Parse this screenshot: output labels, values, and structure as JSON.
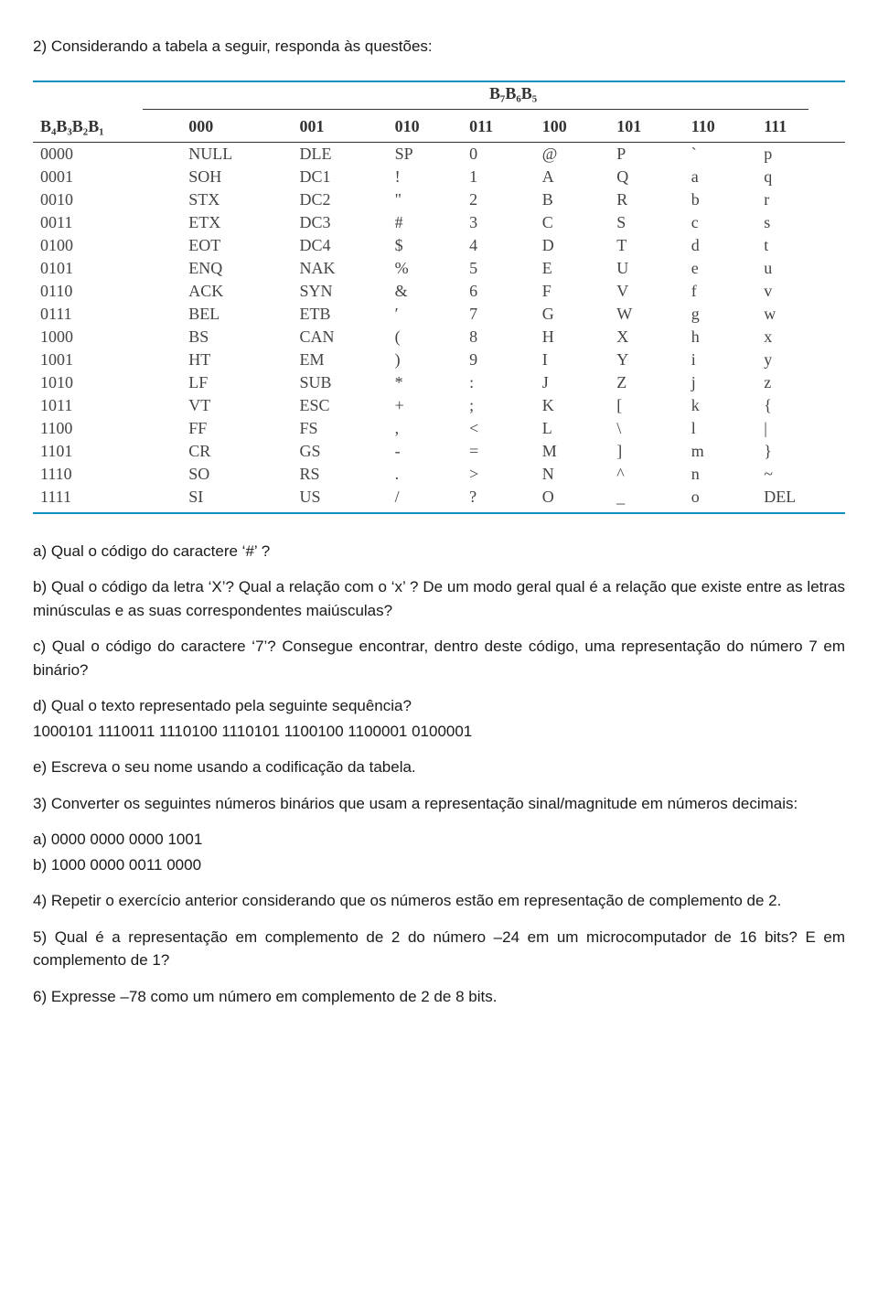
{
  "intro": "2) Considerando a tabela a seguir, responda às questões:",
  "table": {
    "super_header": "B₇B₆B₅",
    "row_header_label": "B₄B₃B₂B₁",
    "col_headers": [
      "000",
      "001",
      "010",
      "011",
      "100",
      "101",
      "110",
      "111"
    ],
    "rows": [
      {
        "b": "0000",
        "c": [
          "NULL",
          "DLE",
          "SP",
          "0",
          "@",
          "P",
          "`",
          "p"
        ]
      },
      {
        "b": "0001",
        "c": [
          "SOH",
          "DC1",
          "!",
          "1",
          "A",
          "Q",
          "a",
          "q"
        ]
      },
      {
        "b": "0010",
        "c": [
          "STX",
          "DC2",
          "\"",
          "2",
          "B",
          "R",
          "b",
          "r"
        ]
      },
      {
        "b": "0011",
        "c": [
          "ETX",
          "DC3",
          "#",
          "3",
          "C",
          "S",
          "c",
          "s"
        ]
      },
      {
        "b": "0100",
        "c": [
          "EOT",
          "DC4",
          "$",
          "4",
          "D",
          "T",
          "d",
          "t"
        ]
      },
      {
        "b": "0101",
        "c": [
          "ENQ",
          "NAK",
          "%",
          "5",
          "E",
          "U",
          "e",
          "u"
        ]
      },
      {
        "b": "0110",
        "c": [
          "ACK",
          "SYN",
          "&",
          "6",
          "F",
          "V",
          "f",
          "v"
        ]
      },
      {
        "b": "0111",
        "c": [
          "BEL",
          "ETB",
          "′",
          "7",
          "G",
          "W",
          "g",
          "w"
        ]
      },
      {
        "b": "1000",
        "c": [
          "BS",
          "CAN",
          "(",
          "8",
          "H",
          "X",
          "h",
          "x"
        ]
      },
      {
        "b": "1001",
        "c": [
          "HT",
          "EM",
          ")",
          "9",
          "I",
          "Y",
          "i",
          "y"
        ]
      },
      {
        "b": "1010",
        "c": [
          "LF",
          "SUB",
          "*",
          ":",
          "J",
          "Z",
          "j",
          "z"
        ]
      },
      {
        "b": "1011",
        "c": [
          "VT",
          "ESC",
          "+",
          ";",
          "K",
          "[",
          "k",
          "{"
        ]
      },
      {
        "b": "1100",
        "c": [
          "FF",
          "FS",
          ",",
          "<",
          "L",
          "\\",
          "l",
          "|"
        ]
      },
      {
        "b": "1101",
        "c": [
          "CR",
          "GS",
          "-",
          "=",
          "M",
          "]",
          "m",
          "}"
        ]
      },
      {
        "b": "1110",
        "c": [
          "SO",
          "RS",
          ".",
          ">",
          "N",
          "^",
          "n",
          "~"
        ]
      },
      {
        "b": "1111",
        "c": [
          "SI",
          "US",
          "/",
          "?",
          "O",
          "_",
          "o",
          "DEL"
        ]
      }
    ],
    "rule_color": "#0d8fbf",
    "font_family": "Times New Roman",
    "font_size_pt": 13
  },
  "qa": "a) Qual o código do caractere ‘#’ ?",
  "qb": "b) Qual o código da letra ‘X’? Qual a relação com o ‘x’ ? De um modo geral qual é a relação que existe entre as letras minúsculas e as suas correspondentes maiúsculas?",
  "qc": "c) Qual o código do caractere ‘7’? Consegue encontrar, dentro deste código, uma representação do número 7 em binário?",
  "qd": "d) Qual o texto representado pela seguinte sequência?",
  "qd_seq": "1000101 1110011 1110100 1110101 1100100 1100001 0100001",
  "qe": "e) Escreva o seu nome usando a codificação da tabela.",
  "q3": "3) Converter os seguintes números binários que usam a representação sinal/magnitude em números decimais:",
  "q3a": "a) 0000 0000 0000 1001",
  "q3b": "b) 1000 0000 0011 0000",
  "q4": "4) Repetir o exercício anterior considerando que os números estão em representação de complemento de 2.",
  "q5": "5) Qual é a representação em complemento de 2 do número –24 em um microcomputador de 16 bits? E em complemento de 1?",
  "q6": "6) Expresse –78 como um número em complemento de 2 de 8 bits."
}
